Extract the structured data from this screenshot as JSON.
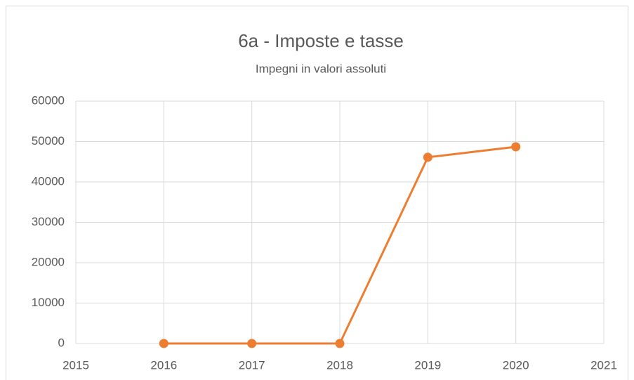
{
  "chart_data": {
    "type": "line",
    "title": "6a - Imposte e tasse",
    "subtitle": "Impegni in valori assoluti",
    "x": [
      2016,
      2017,
      2018,
      2019,
      2020
    ],
    "series": [
      {
        "name": "Impegni",
        "color": "#ed7d31",
        "values": [
          0,
          0,
          0,
          46100,
          48700
        ]
      }
    ],
    "xlim": [
      2015,
      2021
    ],
    "xticks": [
      2015,
      2016,
      2017,
      2018,
      2019,
      2020,
      2021
    ],
    "ylim": [
      0,
      60000
    ],
    "yticks": [
      0,
      10000,
      20000,
      30000,
      40000,
      50000,
      60000
    ],
    "grid": true
  }
}
